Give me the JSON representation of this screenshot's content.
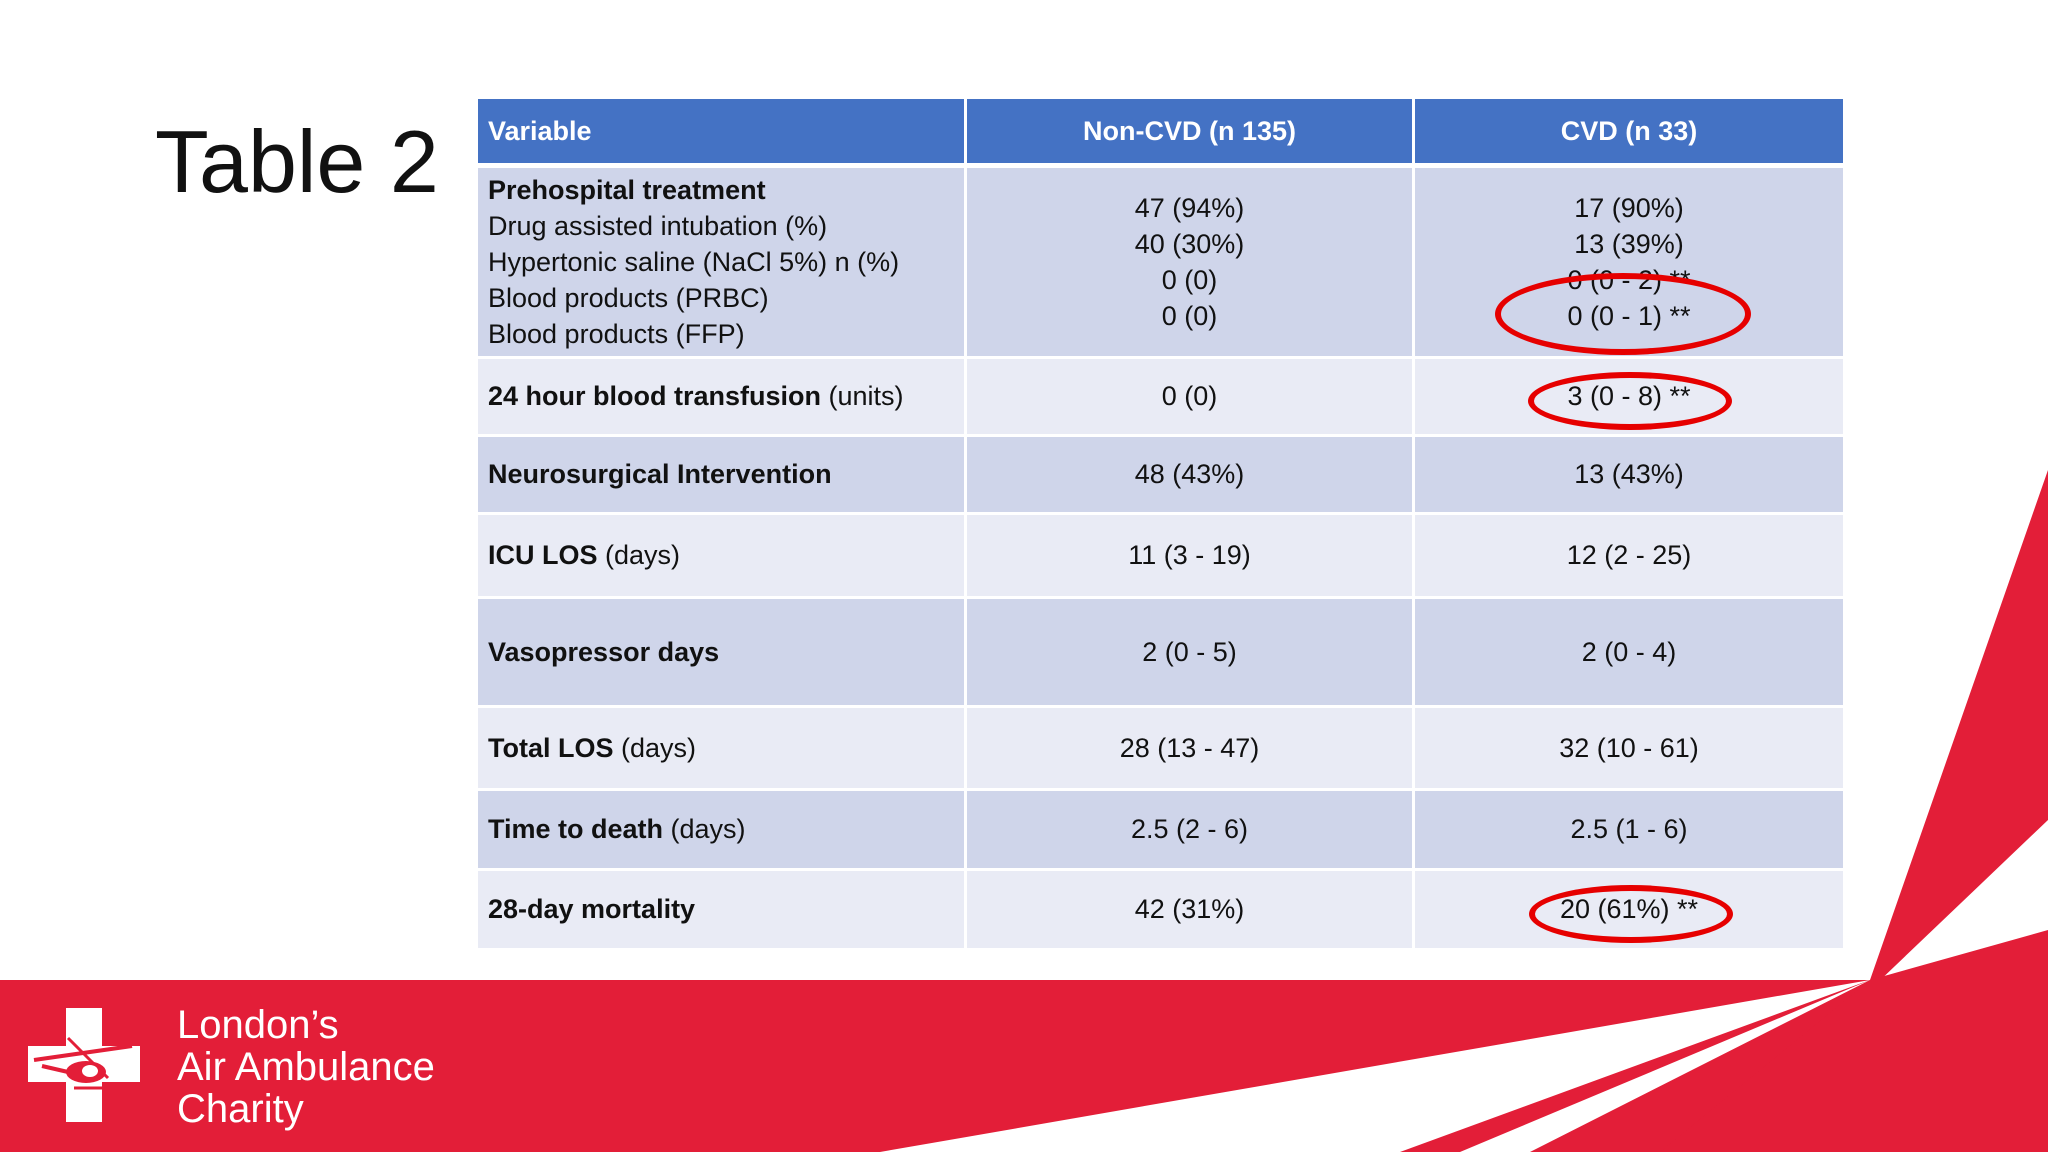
{
  "slide": {
    "title": "Table 2"
  },
  "table": {
    "headers": [
      "Variable",
      "Non-CVD (n 135)",
      "CVD (n 33)"
    ],
    "group": {
      "heading": "Prehospital treatment",
      "rows": [
        {
          "label": "Drug assisted intubation (%)",
          "non_cvd": "47 (94%)",
          "cvd": "17 (90%)"
        },
        {
          "label": "Hypertonic saline (NaCl 5%) n (%)",
          "non_cvd": "40 (30%)",
          "cvd": "13 (39%)"
        },
        {
          "label": "Blood products (PRBC)",
          "non_cvd": "0 (0)",
          "cvd": "0 (0 - 2) **"
        },
        {
          "label": "Blood products (FFP)",
          "non_cvd": "0 (0)",
          "cvd": "0 (0 - 1) **"
        }
      ]
    },
    "rows": [
      {
        "label_bold": "24 hour blood transfusion",
        "label_unit": " (units)",
        "non_cvd": "0 (0)",
        "cvd": "3 (0 - 8) **"
      },
      {
        "label_bold": "Neurosurgical Intervention",
        "label_unit": "",
        "non_cvd": "48 (43%)",
        "cvd": "13 (43%)"
      },
      {
        "label_bold": "ICU LOS",
        "label_unit": " (days)",
        "non_cvd": "11 (3 - 19)",
        "cvd": "12 (2 - 25)"
      },
      {
        "label_bold": "Vasopressor days",
        "label_unit": "",
        "non_cvd": "2 (0 - 5)",
        "cvd": "2 (0 - 4)"
      },
      {
        "label_bold": "Total LOS",
        "label_unit": " (days)",
        "non_cvd": "28 (13 - 47)",
        "cvd": "32 (10 - 61)"
      },
      {
        "label_bold": "Time to death",
        "label_unit": " (days)",
        "non_cvd": "2.5 (2 - 6)",
        "cvd": "2.5 (1 - 6)"
      },
      {
        "label_bold": "28-day mortality",
        "label_unit": "",
        "non_cvd": "42 (31%)",
        "cvd": "20 (61%) **"
      }
    ]
  },
  "brand": {
    "line1": "London’s",
    "line2": "Air Ambulance",
    "line3": "Charity"
  },
  "colors": {
    "header_blue": "#4472c4",
    "row_dark": "#cfd5ea",
    "row_light": "#e9ebf5",
    "brand_red": "#e31e38",
    "highlight_red": "#e60000"
  },
  "icons": {
    "logo": "cross-helicopter-logo-icon"
  }
}
